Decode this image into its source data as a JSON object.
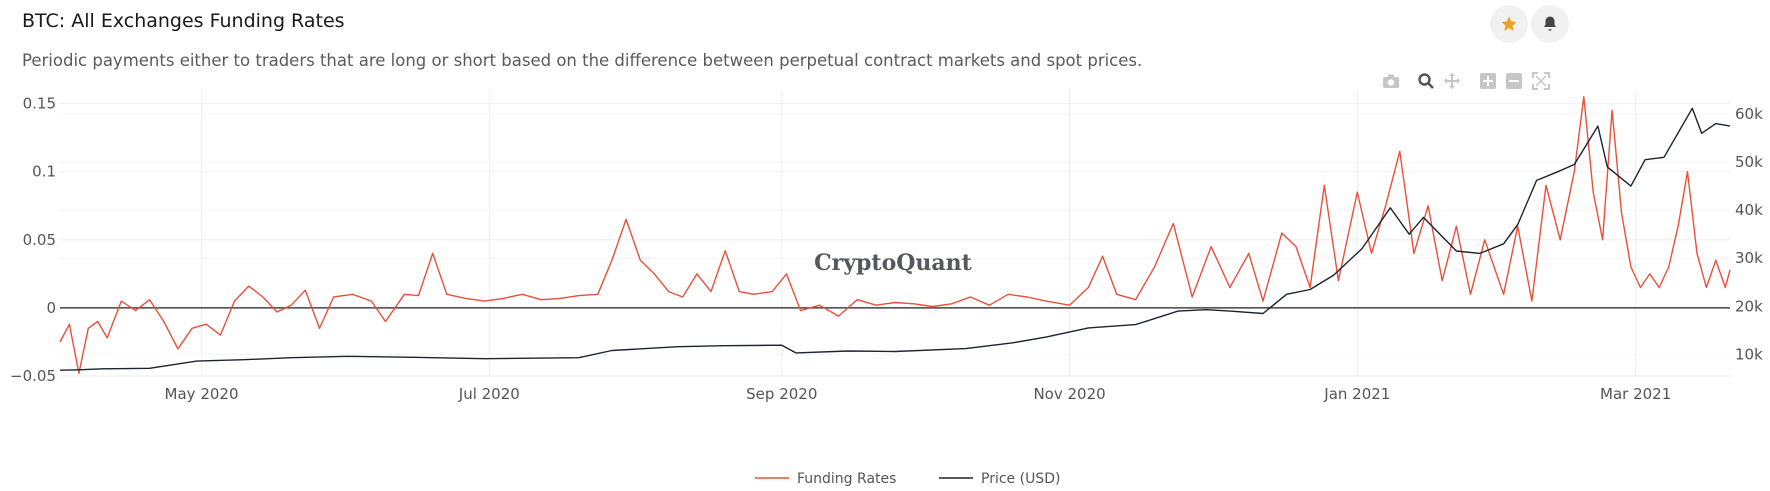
{
  "header": {
    "title": "BTC: All Exchanges Funding Rates",
    "subtitle": "Periodic payments either to traders that are long or short based on the difference between perpetual contract markets and spot prices."
  },
  "actions": {
    "favorite_icon": "star-icon",
    "alert_icon": "bell-icon",
    "accent_color": "#f0a020"
  },
  "modebar": {
    "icons": [
      "camera-icon",
      "zoom-icon",
      "pan-icon",
      "zoom-in-icon",
      "zoom-out-icon",
      "autoscale-icon"
    ]
  },
  "watermark": "CryptoQuant",
  "chart_data": {
    "type": "line",
    "x_start": "2020-04-01",
    "x_end": "2021-03-21",
    "x_tick_labels": [
      "May 2020",
      "Jul 2020",
      "Sep 2020",
      "Nov 2020",
      "Jan 2021",
      "Mar 2021"
    ],
    "x_tick_dates": [
      "2020-05-01",
      "2020-07-01",
      "2020-09-01",
      "2020-11-01",
      "2021-01-01",
      "2021-03-01"
    ],
    "y_left": {
      "range": [
        -0.05,
        0.16
      ],
      "tick_labels": [
        "−0.05",
        "0",
        "0.05",
        "0.1",
        "0.15"
      ],
      "tick_values": [
        -0.05,
        0,
        0.05,
        0.1,
        0.15
      ]
    },
    "y_right": {
      "range": [
        5500,
        65000
      ],
      "tick_labels": [
        "10k",
        "20k",
        "30k",
        "40k",
        "50k",
        "60k"
      ],
      "tick_values": [
        10000,
        20000,
        30000,
        40000,
        50000,
        60000
      ]
    },
    "grid": true,
    "legend_position": "bottom-center",
    "series": [
      {
        "name": "Funding Rates",
        "axis": "left",
        "color": "#e8503a",
        "points": [
          [
            "2020-04-01",
            -0.025
          ],
          [
            "2020-04-03",
            -0.012
          ],
          [
            "2020-04-05",
            -0.048
          ],
          [
            "2020-04-07",
            -0.015
          ],
          [
            "2020-04-09",
            -0.01
          ],
          [
            "2020-04-11",
            -0.022
          ],
          [
            "2020-04-14",
            0.005
          ],
          [
            "2020-04-17",
            -0.002
          ],
          [
            "2020-04-20",
            0.006
          ],
          [
            "2020-04-23",
            -0.01
          ],
          [
            "2020-04-26",
            -0.03
          ],
          [
            "2020-04-29",
            -0.015
          ],
          [
            "2020-05-02",
            -0.012
          ],
          [
            "2020-05-05",
            -0.02
          ],
          [
            "2020-05-08",
            0.005
          ],
          [
            "2020-05-11",
            0.016
          ],
          [
            "2020-05-14",
            0.008
          ],
          [
            "2020-05-17",
            -0.003
          ],
          [
            "2020-05-20",
            0.002
          ],
          [
            "2020-05-23",
            0.013
          ],
          [
            "2020-05-26",
            -0.015
          ],
          [
            "2020-05-29",
            0.008
          ],
          [
            "2020-06-02",
            0.01
          ],
          [
            "2020-06-06",
            0.005
          ],
          [
            "2020-06-09",
            -0.01
          ],
          [
            "2020-06-13",
            0.01
          ],
          [
            "2020-06-16",
            0.009
          ],
          [
            "2020-06-19",
            0.04
          ],
          [
            "2020-06-22",
            0.01
          ],
          [
            "2020-06-26",
            0.007
          ],
          [
            "2020-06-30",
            0.005
          ],
          [
            "2020-07-04",
            0.007
          ],
          [
            "2020-07-08",
            0.01
          ],
          [
            "2020-07-12",
            0.006
          ],
          [
            "2020-07-16",
            0.007
          ],
          [
            "2020-07-20",
            0.009
          ],
          [
            "2020-07-24",
            0.01
          ],
          [
            "2020-07-27",
            0.035
          ],
          [
            "2020-07-30",
            0.065
          ],
          [
            "2020-08-02",
            0.035
          ],
          [
            "2020-08-05",
            0.025
          ],
          [
            "2020-08-08",
            0.012
          ],
          [
            "2020-08-11",
            0.008
          ],
          [
            "2020-08-14",
            0.025
          ],
          [
            "2020-08-17",
            0.012
          ],
          [
            "2020-08-20",
            0.042
          ],
          [
            "2020-08-23",
            0.012
          ],
          [
            "2020-08-26",
            0.01
          ],
          [
            "2020-08-30",
            0.012
          ],
          [
            "2020-09-02",
            0.025
          ],
          [
            "2020-09-05",
            -0.002
          ],
          [
            "2020-09-09",
            0.002
          ],
          [
            "2020-09-13",
            -0.006
          ],
          [
            "2020-09-17",
            0.006
          ],
          [
            "2020-09-21",
            0.002
          ],
          [
            "2020-09-25",
            0.004
          ],
          [
            "2020-09-29",
            0.003
          ],
          [
            "2020-10-03",
            0.001
          ],
          [
            "2020-10-07",
            0.003
          ],
          [
            "2020-10-11",
            0.008
          ],
          [
            "2020-10-15",
            0.002
          ],
          [
            "2020-10-19",
            0.01
          ],
          [
            "2020-10-23",
            0.008
          ],
          [
            "2020-10-27",
            0.005
          ],
          [
            "2020-11-01",
            0.002
          ],
          [
            "2020-11-05",
            0.015
          ],
          [
            "2020-11-08",
            0.038
          ],
          [
            "2020-11-11",
            0.01
          ],
          [
            "2020-11-15",
            0.006
          ],
          [
            "2020-11-19",
            0.03
          ],
          [
            "2020-11-23",
            0.062
          ],
          [
            "2020-11-27",
            0.008
          ],
          [
            "2020-12-01",
            0.045
          ],
          [
            "2020-12-05",
            0.015
          ],
          [
            "2020-12-09",
            0.04
          ],
          [
            "2020-12-12",
            0.005
          ],
          [
            "2020-12-16",
            0.055
          ],
          [
            "2020-12-19",
            0.045
          ],
          [
            "2020-12-22",
            0.015
          ],
          [
            "2020-12-25",
            0.09
          ],
          [
            "2020-12-28",
            0.02
          ],
          [
            "2021-01-01",
            0.085
          ],
          [
            "2021-01-04",
            0.04
          ],
          [
            "2021-01-07",
            0.075
          ],
          [
            "2021-01-10",
            0.115
          ],
          [
            "2021-01-13",
            0.04
          ],
          [
            "2021-01-16",
            0.075
          ],
          [
            "2021-01-19",
            0.02
          ],
          [
            "2021-01-22",
            0.06
          ],
          [
            "2021-01-25",
            0.01
          ],
          [
            "2021-01-28",
            0.05
          ],
          [
            "2021-02-01",
            0.01
          ],
          [
            "2021-02-04",
            0.06
          ],
          [
            "2021-02-07",
            0.005
          ],
          [
            "2021-02-10",
            0.09
          ],
          [
            "2021-02-13",
            0.05
          ],
          [
            "2021-02-16",
            0.1
          ],
          [
            "2021-02-18",
            0.155
          ],
          [
            "2021-02-20",
            0.085
          ],
          [
            "2021-02-22",
            0.05
          ],
          [
            "2021-02-24",
            0.145
          ],
          [
            "2021-02-26",
            0.07
          ],
          [
            "2021-02-28",
            0.03
          ],
          [
            "2021-03-02",
            0.015
          ],
          [
            "2021-03-04",
            0.025
          ],
          [
            "2021-03-06",
            0.015
          ],
          [
            "2021-03-08",
            0.03
          ],
          [
            "2021-03-10",
            0.06
          ],
          [
            "2021-03-12",
            0.1
          ],
          [
            "2021-03-14",
            0.04
          ],
          [
            "2021-03-16",
            0.015
          ],
          [
            "2021-03-18",
            0.035
          ],
          [
            "2021-03-20",
            0.015
          ],
          [
            "2021-03-21",
            0.028
          ]
        ]
      },
      {
        "name": "Price (USD)",
        "axis": "right",
        "color": "#1d2430",
        "points": [
          [
            "2020-04-01",
            6700
          ],
          [
            "2020-04-05",
            6800
          ],
          [
            "2020-04-10",
            7000
          ],
          [
            "2020-04-20",
            7100
          ],
          [
            "2020-04-30",
            8600
          ],
          [
            "2020-05-10",
            8900
          ],
          [
            "2020-05-20",
            9300
          ],
          [
            "2020-06-01",
            9600
          ],
          [
            "2020-06-15",
            9400
          ],
          [
            "2020-06-30",
            9100
          ],
          [
            "2020-07-10",
            9200
          ],
          [
            "2020-07-20",
            9300
          ],
          [
            "2020-07-27",
            10800
          ],
          [
            "2020-08-10",
            11600
          ],
          [
            "2020-08-20",
            11800
          ],
          [
            "2020-09-01",
            11900
          ],
          [
            "2020-09-04",
            10300
          ],
          [
            "2020-09-15",
            10700
          ],
          [
            "2020-09-25",
            10600
          ],
          [
            "2020-10-10",
            11200
          ],
          [
            "2020-10-20",
            12400
          ],
          [
            "2020-10-27",
            13600
          ],
          [
            "2020-11-05",
            15500
          ],
          [
            "2020-11-15",
            16200
          ],
          [
            "2020-11-24",
            19000
          ],
          [
            "2020-11-30",
            19300
          ],
          [
            "2020-12-05",
            19000
          ],
          [
            "2020-12-12",
            18500
          ],
          [
            "2020-12-17",
            22500
          ],
          [
            "2020-12-22",
            23500
          ],
          [
            "2020-12-27",
            26500
          ],
          [
            "2021-01-02",
            32000
          ],
          [
            "2021-01-08",
            40500
          ],
          [
            "2021-01-12",
            35000
          ],
          [
            "2021-01-15",
            38500
          ],
          [
            "2021-01-22",
            31500
          ],
          [
            "2021-01-27",
            31000
          ],
          [
            "2021-02-01",
            33000
          ],
          [
            "2021-02-04",
            37000
          ],
          [
            "2021-02-08",
            46200
          ],
          [
            "2021-02-12",
            47800
          ],
          [
            "2021-02-16",
            49500
          ],
          [
            "2021-02-21",
            57500
          ],
          [
            "2021-02-23",
            49000
          ],
          [
            "2021-02-28",
            45000
          ],
          [
            "2021-03-03",
            50500
          ],
          [
            "2021-03-07",
            51000
          ],
          [
            "2021-03-13",
            61200
          ],
          [
            "2021-03-15",
            56000
          ],
          [
            "2021-03-18",
            58000
          ],
          [
            "2021-03-21",
            57500
          ]
        ]
      }
    ]
  }
}
